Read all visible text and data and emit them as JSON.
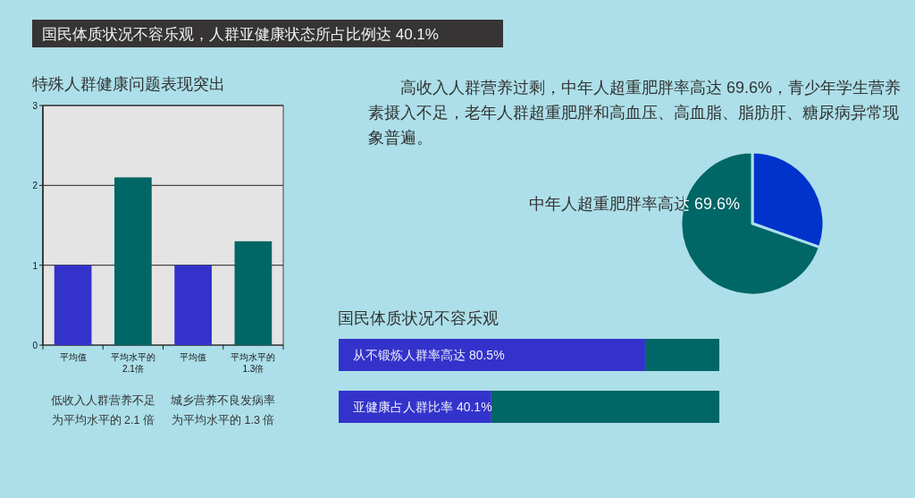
{
  "chart_data": [
    {
      "type": "other",
      "title": "国民体质状况不容乐观，人群亚健康状态所占比例达 40.1%"
    },
    {
      "type": "bar",
      "title": "特殊人群健康问题表现突出",
      "categories": [
        "平均值",
        "平均水平的\n2.1倍",
        "平均值",
        "平均水平的\n1.3倍"
      ],
      "values": [
        1,
        2.1,
        1,
        1.3
      ],
      "colors": [
        "#3333cc",
        "#006666",
        "#3333cc",
        "#006666"
      ],
      "ylim": [
        0,
        3
      ],
      "yticks": [
        0,
        1,
        2,
        3
      ],
      "grid": "y",
      "annotations": [
        "低收入人群营养不足为平均水平的 2.1 倍",
        "城乡营养不良发病率为平均水平的 1.3 倍"
      ]
    },
    {
      "type": "pie",
      "subtitle": "高收入人群营养过剩，中年人超重肥胖率高达 69.6%，青少年学生营养素摄入不足，老年人群超重肥胖和高血压、高血脂、脂肪肝、糖尿病异常现象普遍。",
      "categories": [
        null,
        "中年人超重肥胖率高达 69.6%"
      ],
      "values": [
        30.4,
        69.6
      ],
      "colors": [
        "#0033cc",
        "#006666"
      ]
    },
    {
      "type": "bar",
      "orientation": "horizontal",
      "stacked": true,
      "title": "国民体质状况不容乐观",
      "categories": [
        null,
        null
      ],
      "xlim": [
        0,
        100
      ],
      "series": [
        {
          "color": "#3333cc",
          "values": [
            80.5,
            40.1
          ],
          "value_labels": [
            "从不锻炼人群率高达 80.5%",
            "亚健康占人群比率 40.1%"
          ]
        },
        {
          "color": "#006666",
          "values": [
            19.5,
            59.9
          ]
        }
      ]
    }
  ]
}
